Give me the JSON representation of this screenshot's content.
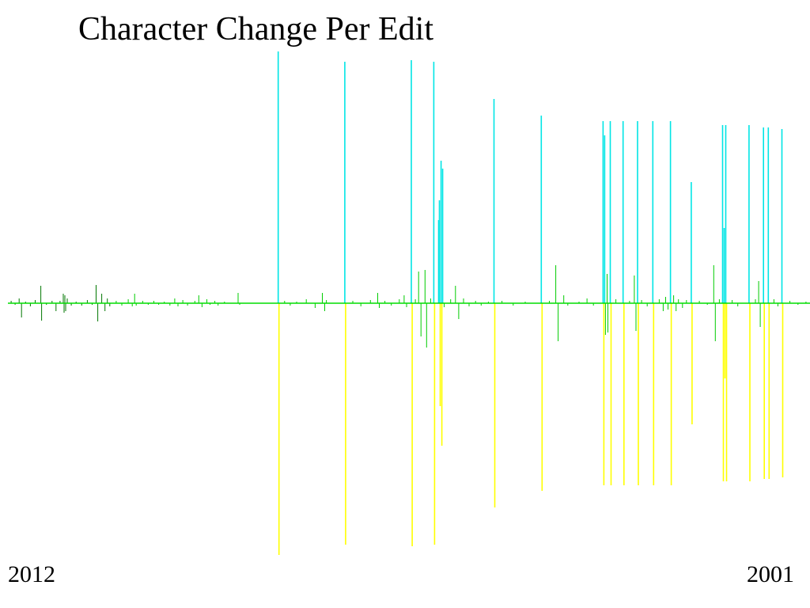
{
  "chart_data": {
    "type": "bar",
    "title": "Character Change Per Edit",
    "xlabel": "",
    "ylabel": "",
    "x_range": [
      "2012",
      "2001"
    ],
    "x_start_label": "2012",
    "x_end_label": "2001",
    "baseline_value": 0,
    "grid": false,
    "legend": "none",
    "colors": {
      "baseline": "#00dd00",
      "small_change": "#00cc00",
      "early_change": "#007700",
      "addition": "#00e5e5",
      "removal": "#ffff00"
    },
    "series": [
      {
        "values": [
          {
            "t": 0.004,
            "v": 3
          },
          {
            "t": 0.009,
            "v": -2
          },
          {
            "t": 0.014,
            "v": 6
          },
          {
            "t": 0.017,
            "v": -18
          },
          {
            "t": 0.022,
            "v": 2
          },
          {
            "t": 0.028,
            "v": -4
          },
          {
            "t": 0.034,
            "v": 4
          },
          {
            "t": 0.041,
            "v": 22
          },
          {
            "t": 0.042,
            "v": -22
          },
          {
            "t": 0.048,
            "v": -2
          },
          {
            "t": 0.055,
            "v": 3
          },
          {
            "t": 0.06,
            "v": -10
          },
          {
            "t": 0.065,
            "v": 3
          },
          {
            "t": 0.069,
            "v": 12
          },
          {
            "t": 0.07,
            "v": -12
          },
          {
            "t": 0.071,
            "v": 10
          },
          {
            "t": 0.072,
            "v": -10
          },
          {
            "t": 0.074,
            "v": 6
          },
          {
            "t": 0.079,
            "v": -3
          },
          {
            "t": 0.085,
            "v": 2
          },
          {
            "t": 0.092,
            "v": -3
          },
          {
            "t": 0.099,
            "v": 4
          },
          {
            "t": 0.105,
            "v": -2
          },
          {
            "t": 0.11,
            "v": 23
          },
          {
            "t": 0.112,
            "v": -23
          },
          {
            "t": 0.117,
            "v": 12
          },
          {
            "t": 0.121,
            "v": -10
          },
          {
            "t": 0.124,
            "v": 6
          },
          {
            "t": 0.127,
            "v": -4
          },
          {
            "t": 0.135,
            "v": 3
          },
          {
            "t": 0.142,
            "v": -3
          },
          {
            "t": 0.15,
            "v": 5
          },
          {
            "t": 0.155,
            "v": -4
          },
          {
            "t": 0.158,
            "v": 12
          },
          {
            "t": 0.16,
            "v": -3
          },
          {
            "t": 0.168,
            "v": 3
          },
          {
            "t": 0.175,
            "v": -2
          },
          {
            "t": 0.182,
            "v": 3
          },
          {
            "t": 0.188,
            "v": -2
          },
          {
            "t": 0.195,
            "v": 2
          },
          {
            "t": 0.202,
            "v": -3
          },
          {
            "t": 0.208,
            "v": 6
          },
          {
            "t": 0.212,
            "v": -4
          },
          {
            "t": 0.218,
            "v": 4
          },
          {
            "t": 0.224,
            "v": -3
          },
          {
            "t": 0.233,
            "v": 3
          },
          {
            "t": 0.238,
            "v": 10
          },
          {
            "t": 0.242,
            "v": -5
          },
          {
            "t": 0.248,
            "v": 5
          },
          {
            "t": 0.252,
            "v": -2
          },
          {
            "t": 0.258,
            "v": 3
          },
          {
            "t": 0.262,
            "v": -3
          },
          {
            "t": 0.27,
            "v": 2
          },
          {
            "t": 0.287,
            "v": 13
          },
          {
            "t": 0.289,
            "v": -2
          },
          {
            "t": 0.337,
            "v": 318
          },
          {
            "t": 0.338,
            "v": -318
          },
          {
            "t": 0.345,
            "v": 3
          },
          {
            "t": 0.352,
            "v": -3
          },
          {
            "t": 0.36,
            "v": 2
          },
          {
            "t": 0.372,
            "v": 5
          },
          {
            "t": 0.383,
            "v": -6
          },
          {
            "t": 0.392,
            "v": 13
          },
          {
            "t": 0.395,
            "v": -10
          },
          {
            "t": 0.397,
            "v": 4
          },
          {
            "t": 0.42,
            "v": 305
          },
          {
            "t": 0.421,
            "v": -305
          },
          {
            "t": 0.43,
            "v": 3
          },
          {
            "t": 0.44,
            "v": -4
          },
          {
            "t": 0.452,
            "v": 4
          },
          {
            "t": 0.461,
            "v": 13
          },
          {
            "t": 0.463,
            "v": -6
          },
          {
            "t": 0.47,
            "v": 3
          },
          {
            "t": 0.478,
            "v": -3
          },
          {
            "t": 0.488,
            "v": 5
          },
          {
            "t": 0.494,
            "v": 10
          },
          {
            "t": 0.497,
            "v": -5
          },
          {
            "t": 0.503,
            "v": 307
          },
          {
            "t": 0.504,
            "v": -307
          },
          {
            "t": 0.508,
            "v": 5
          },
          {
            "t": 0.512,
            "v": 40
          },
          {
            "t": 0.515,
            "v": -42
          },
          {
            "t": 0.52,
            "v": 42
          },
          {
            "t": 0.522,
            "v": -56
          },
          {
            "t": 0.527,
            "v": 6
          },
          {
            "t": 0.531,
            "v": 305
          },
          {
            "t": 0.532,
            "v": -305
          },
          {
            "t": 0.537,
            "v": 105
          },
          {
            "t": 0.538,
            "v": 130
          },
          {
            "t": 0.539,
            "v": -130
          },
          {
            "t": 0.54,
            "v": 180
          },
          {
            "t": 0.541,
            "v": -180
          },
          {
            "t": 0.542,
            "v": 170
          },
          {
            "t": 0.544,
            "v": -5
          },
          {
            "t": 0.552,
            "v": 5
          },
          {
            "t": 0.558,
            "v": 22
          },
          {
            "t": 0.562,
            "v": -20
          },
          {
            "t": 0.568,
            "v": 6
          },
          {
            "t": 0.575,
            "v": -4
          },
          {
            "t": 0.583,
            "v": 3
          },
          {
            "t": 0.59,
            "v": -3
          },
          {
            "t": 0.599,
            "v": 2
          },
          {
            "t": 0.606,
            "v": 258
          },
          {
            "t": 0.607,
            "v": -258
          },
          {
            "t": 0.616,
            "v": 3
          },
          {
            "t": 0.63,
            "v": -3
          },
          {
            "t": 0.645,
            "v": 2
          },
          {
            "t": 0.665,
            "v": 237
          },
          {
            "t": 0.666,
            "v": -237
          },
          {
            "t": 0.675,
            "v": 3
          },
          {
            "t": 0.683,
            "v": 48
          },
          {
            "t": 0.686,
            "v": -48
          },
          {
            "t": 0.693,
            "v": 10
          },
          {
            "t": 0.698,
            "v": -3
          },
          {
            "t": 0.712,
            "v": 2
          },
          {
            "t": 0.722,
            "v": 6
          },
          {
            "t": 0.73,
            "v": -3
          },
          {
            "t": 0.742,
            "v": 230
          },
          {
            "t": 0.743,
            "v": -230
          },
          {
            "t": 0.744,
            "v": 212
          },
          {
            "t": 0.745,
            "v": -40
          },
          {
            "t": 0.747,
            "v": 37
          },
          {
            "t": 0.748,
            "v": -37
          },
          {
            "t": 0.751,
            "v": 230
          },
          {
            "t": 0.752,
            "v": -230
          },
          {
            "t": 0.758,
            "v": 5
          },
          {
            "t": 0.767,
            "v": 230
          },
          {
            "t": 0.768,
            "v": -230
          },
          {
            "t": 0.775,
            "v": 3
          },
          {
            "t": 0.781,
            "v": 35
          },
          {
            "t": 0.783,
            "v": -35
          },
          {
            "t": 0.785,
            "v": 230
          },
          {
            "t": 0.786,
            "v": -230
          },
          {
            "t": 0.79,
            "v": 4
          },
          {
            "t": 0.797,
            "v": -4
          },
          {
            "t": 0.804,
            "v": 230
          },
          {
            "t": 0.805,
            "v": -230
          },
          {
            "t": 0.812,
            "v": 5
          },
          {
            "t": 0.817,
            "v": -10
          },
          {
            "t": 0.82,
            "v": 8
          },
          {
            "t": 0.823,
            "v": -8
          },
          {
            "t": 0.826,
            "v": 230
          },
          {
            "t": 0.827,
            "v": -230
          },
          {
            "t": 0.83,
            "v": 10
          },
          {
            "t": 0.833,
            "v": -10
          },
          {
            "t": 0.836,
            "v": 5
          },
          {
            "t": 0.841,
            "v": -6
          },
          {
            "t": 0.846,
            "v": 4
          },
          {
            "t": 0.852,
            "v": 153
          },
          {
            "t": 0.853,
            "v": -153
          },
          {
            "t": 0.862,
            "v": 3
          },
          {
            "t": 0.872,
            "v": -2
          },
          {
            "t": 0.88,
            "v": 48
          },
          {
            "t": 0.882,
            "v": -48
          },
          {
            "t": 0.887,
            "v": 5
          },
          {
            "t": 0.891,
            "v": 225
          },
          {
            "t": 0.892,
            "v": -225
          },
          {
            "t": 0.893,
            "v": 95
          },
          {
            "t": 0.894,
            "v": -95
          },
          {
            "t": 0.895,
            "v": 225
          },
          {
            "t": 0.896,
            "v": -225
          },
          {
            "t": 0.903,
            "v": 4
          },
          {
            "t": 0.91,
            "v": -4
          },
          {
            "t": 0.924,
            "v": 225
          },
          {
            "t": 0.925,
            "v": -225
          },
          {
            "t": 0.932,
            "v": 5
          },
          {
            "t": 0.936,
            "v": 28
          },
          {
            "t": 0.938,
            "v": -30
          },
          {
            "t": 0.942,
            "v": 222
          },
          {
            "t": 0.943,
            "v": -222
          },
          {
            "t": 0.948,
            "v": 222
          },
          {
            "t": 0.949,
            "v": -222
          },
          {
            "t": 0.955,
            "v": 5
          },
          {
            "t": 0.96,
            "v": -4
          },
          {
            "t": 0.965,
            "v": 220
          },
          {
            "t": 0.966,
            "v": -220
          },
          {
            "t": 0.975,
            "v": 3
          },
          {
            "t": 0.985,
            "v": -2
          },
          {
            "t": 0.995,
            "v": 2
          }
        ]
      }
    ]
  }
}
